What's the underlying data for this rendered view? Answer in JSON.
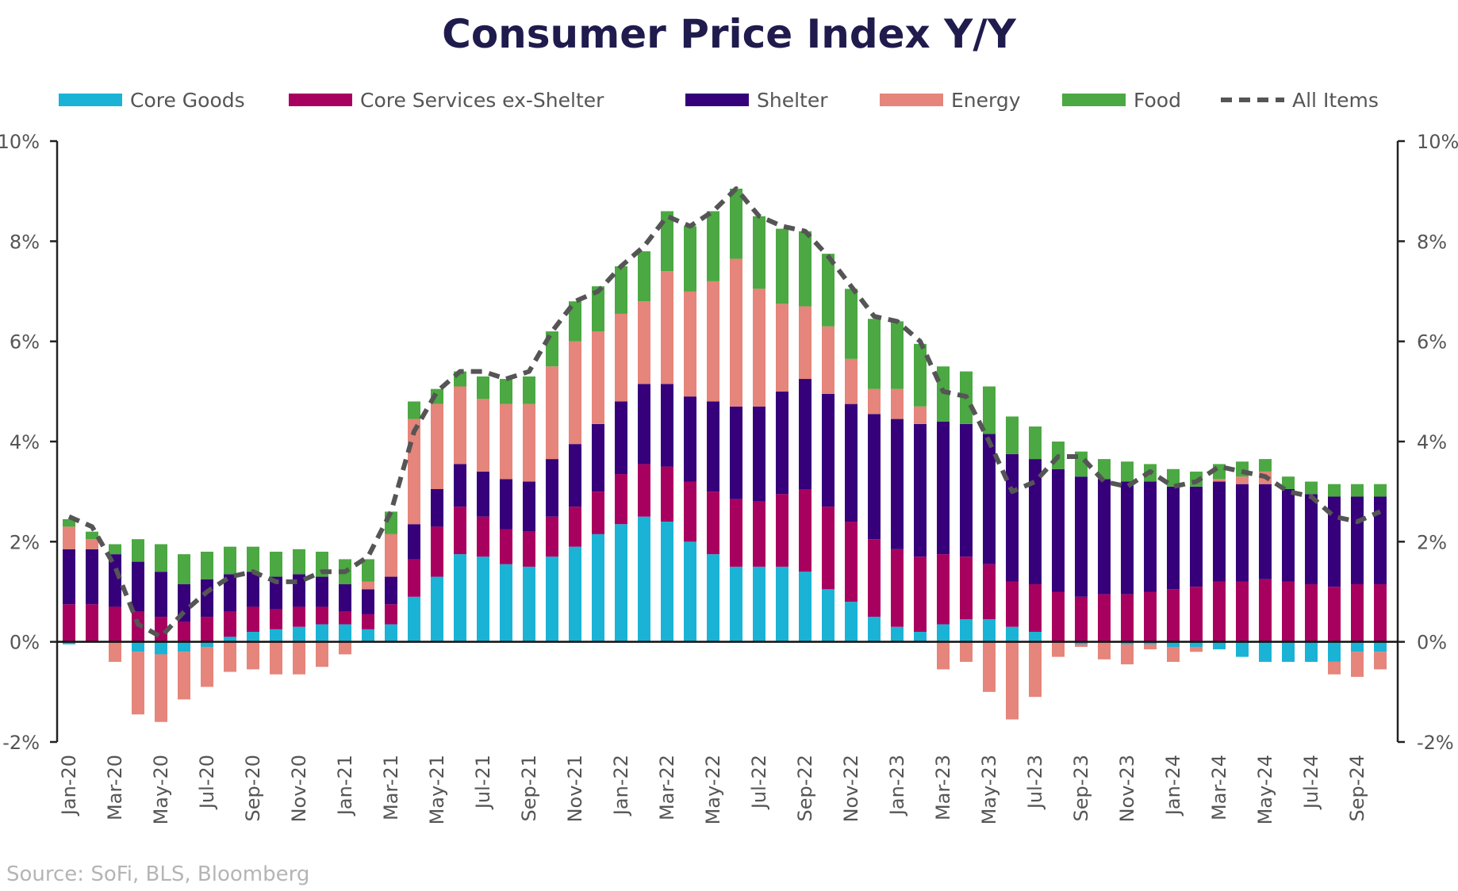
{
  "chart_data": {
    "type": "bar",
    "title": "Consumer Price Index Y/Y",
    "source": "Source: SoFi, BLS, Bloomberg",
    "xlabel": "",
    "ylabel": "",
    "ylim": [
      -2,
      10
    ],
    "y_ticks": [
      "10%",
      "8%",
      "6%",
      "4%",
      "2%",
      "0%",
      "-2%"
    ],
    "y_tick_values": [
      10,
      8,
      6,
      4,
      2,
      0,
      -2
    ],
    "legend_position": "top",
    "grid": false,
    "categories": [
      "Jan-20",
      "Feb-20",
      "Mar-20",
      "Apr-20",
      "May-20",
      "Jun-20",
      "Jul-20",
      "Aug-20",
      "Sep-20",
      "Oct-20",
      "Nov-20",
      "Dec-20",
      "Jan-21",
      "Feb-21",
      "Mar-21",
      "Apr-21",
      "May-21",
      "Jun-21",
      "Jul-21",
      "Aug-21",
      "Sep-21",
      "Oct-21",
      "Nov-21",
      "Dec-21",
      "Jan-22",
      "Feb-22",
      "Mar-22",
      "Apr-22",
      "May-22",
      "Jun-22",
      "Jul-22",
      "Aug-22",
      "Sep-22",
      "Oct-22",
      "Nov-22",
      "Dec-22",
      "Jan-23",
      "Feb-23",
      "Mar-23",
      "Apr-23",
      "May-23",
      "Jun-23",
      "Jul-23",
      "Aug-23",
      "Sep-23",
      "Oct-23",
      "Nov-23",
      "Dec-23",
      "Jan-24",
      "Feb-24",
      "Mar-24",
      "Apr-24",
      "May-24",
      "Jun-24",
      "Jul-24",
      "Aug-24",
      "Sep-24",
      "Oct-24"
    ],
    "x_tick_labels": [
      "Jan-20",
      "Mar-20",
      "May-20",
      "Jul-20",
      "Sep-20",
      "Nov-20",
      "Jan-21",
      "Mar-21",
      "May-21",
      "Jul-21",
      "Sep-21",
      "Nov-21",
      "Jan-22",
      "Mar-22",
      "May-22",
      "Jul-22",
      "Sep-22",
      "Nov-22",
      "Jan-23",
      "Mar-23",
      "May-23",
      "Jul-23",
      "Sep-23",
      "Nov-23",
      "Jan-24",
      "Mar-24",
      "May-24",
      "Jul-24",
      "Sep-24"
    ],
    "series": [
      {
        "name": "Core Goods",
        "color": "#1ab3d6",
        "values": [
          -0.05,
          0.0,
          0.0,
          -0.2,
          -0.25,
          -0.2,
          -0.1,
          0.1,
          0.2,
          0.25,
          0.3,
          0.35,
          0.35,
          0.25,
          0.35,
          0.9,
          1.3,
          1.75,
          1.7,
          1.55,
          1.5,
          1.7,
          1.9,
          2.15,
          2.35,
          2.5,
          2.4,
          2.0,
          1.75,
          1.5,
          1.5,
          1.5,
          1.4,
          1.05,
          0.8,
          0.5,
          0.3,
          0.2,
          0.35,
          0.45,
          0.45,
          0.3,
          0.2,
          0.0,
          -0.05,
          0.0,
          -0.05,
          -0.05,
          -0.1,
          -0.1,
          -0.15,
          -0.3,
          -0.4,
          -0.4,
          -0.4,
          -0.4,
          -0.2,
          -0.2
        ]
      },
      {
        "name": "Core Services ex-Shelter",
        "color": "#a8005f",
        "values": [
          0.75,
          0.75,
          0.7,
          0.6,
          0.5,
          0.4,
          0.5,
          0.5,
          0.5,
          0.4,
          0.4,
          0.35,
          0.25,
          0.3,
          0.4,
          0.75,
          1.0,
          0.95,
          0.8,
          0.7,
          0.7,
          0.8,
          0.8,
          0.85,
          1.0,
          1.05,
          1.1,
          1.2,
          1.25,
          1.35,
          1.3,
          1.45,
          1.65,
          1.65,
          1.6,
          1.55,
          1.55,
          1.5,
          1.4,
          1.25,
          1.1,
          0.9,
          0.95,
          1.0,
          0.9,
          0.95,
          0.95,
          1.0,
          1.05,
          1.1,
          1.2,
          1.2,
          1.25,
          1.2,
          1.15,
          1.1,
          1.15,
          1.15
        ]
      },
      {
        "name": "Shelter",
        "color": "#35007a",
        "values": [
          1.1,
          1.1,
          1.05,
          1.0,
          0.9,
          0.75,
          0.75,
          0.75,
          0.7,
          0.65,
          0.65,
          0.6,
          0.55,
          0.5,
          0.55,
          0.7,
          0.75,
          0.85,
          0.9,
          1.0,
          1.0,
          1.15,
          1.25,
          1.35,
          1.45,
          1.6,
          1.65,
          1.7,
          1.8,
          1.85,
          1.9,
          2.05,
          2.2,
          2.25,
          2.35,
          2.5,
          2.6,
          2.65,
          2.65,
          2.65,
          2.6,
          2.55,
          2.5,
          2.45,
          2.4,
          2.3,
          2.25,
          2.2,
          2.05,
          2.0,
          2.0,
          1.95,
          1.9,
          1.85,
          1.8,
          1.8,
          1.75,
          1.75
        ]
      },
      {
        "name": "Energy",
        "color": "#e5857b",
        "values": [
          0.45,
          0.2,
          -0.4,
          -1.25,
          -1.35,
          -0.95,
          -0.8,
          -0.6,
          -0.55,
          -0.65,
          -0.65,
          -0.5,
          -0.25,
          0.15,
          0.85,
          2.1,
          1.7,
          1.55,
          1.45,
          1.5,
          1.55,
          1.85,
          2.05,
          1.85,
          1.75,
          1.65,
          2.25,
          2.1,
          2.4,
          2.95,
          2.35,
          1.75,
          1.45,
          1.35,
          0.9,
          0.5,
          0.6,
          0.35,
          -0.55,
          -0.4,
          -1.0,
          -1.55,
          -1.1,
          -0.3,
          -0.05,
          -0.35,
          -0.4,
          -0.1,
          -0.3,
          -0.1,
          0.05,
          0.15,
          0.25,
          0.0,
          0.0,
          -0.25,
          -0.5,
          -0.35
        ]
      },
      {
        "name": "Food",
        "color": "#4ba842",
        "values": [
          0.15,
          0.15,
          0.2,
          0.45,
          0.55,
          0.6,
          0.55,
          0.55,
          0.5,
          0.5,
          0.5,
          0.5,
          0.5,
          0.45,
          0.45,
          0.35,
          0.3,
          0.3,
          0.45,
          0.5,
          0.55,
          0.7,
          0.8,
          0.9,
          0.95,
          1.0,
          1.2,
          1.3,
          1.4,
          1.4,
          1.45,
          1.5,
          1.5,
          1.45,
          1.4,
          1.4,
          1.35,
          1.25,
          1.1,
          1.05,
          0.95,
          0.75,
          0.65,
          0.55,
          0.5,
          0.4,
          0.4,
          0.35,
          0.35,
          0.3,
          0.3,
          0.3,
          0.25,
          0.25,
          0.25,
          0.25,
          0.25,
          0.25
        ]
      },
      {
        "name": "All Items",
        "color": "#555555",
        "type": "line",
        "values": [
          2.5,
          2.3,
          1.5,
          0.35,
          0.1,
          0.6,
          1.0,
          1.3,
          1.4,
          1.2,
          1.2,
          1.4,
          1.4,
          1.7,
          2.6,
          4.2,
          5.0,
          5.4,
          5.4,
          5.25,
          5.4,
          6.2,
          6.8,
          7.0,
          7.5,
          7.9,
          8.5,
          8.3,
          8.6,
          9.05,
          8.5,
          8.3,
          8.2,
          7.7,
          7.1,
          6.5,
          6.4,
          6.0,
          5.0,
          4.9,
          4.0,
          3.0,
          3.2,
          3.7,
          3.7,
          3.2,
          3.1,
          3.4,
          3.1,
          3.2,
          3.5,
          3.4,
          3.3,
          3.0,
          2.9,
          2.5,
          2.4,
          2.6
        ]
      }
    ]
  }
}
